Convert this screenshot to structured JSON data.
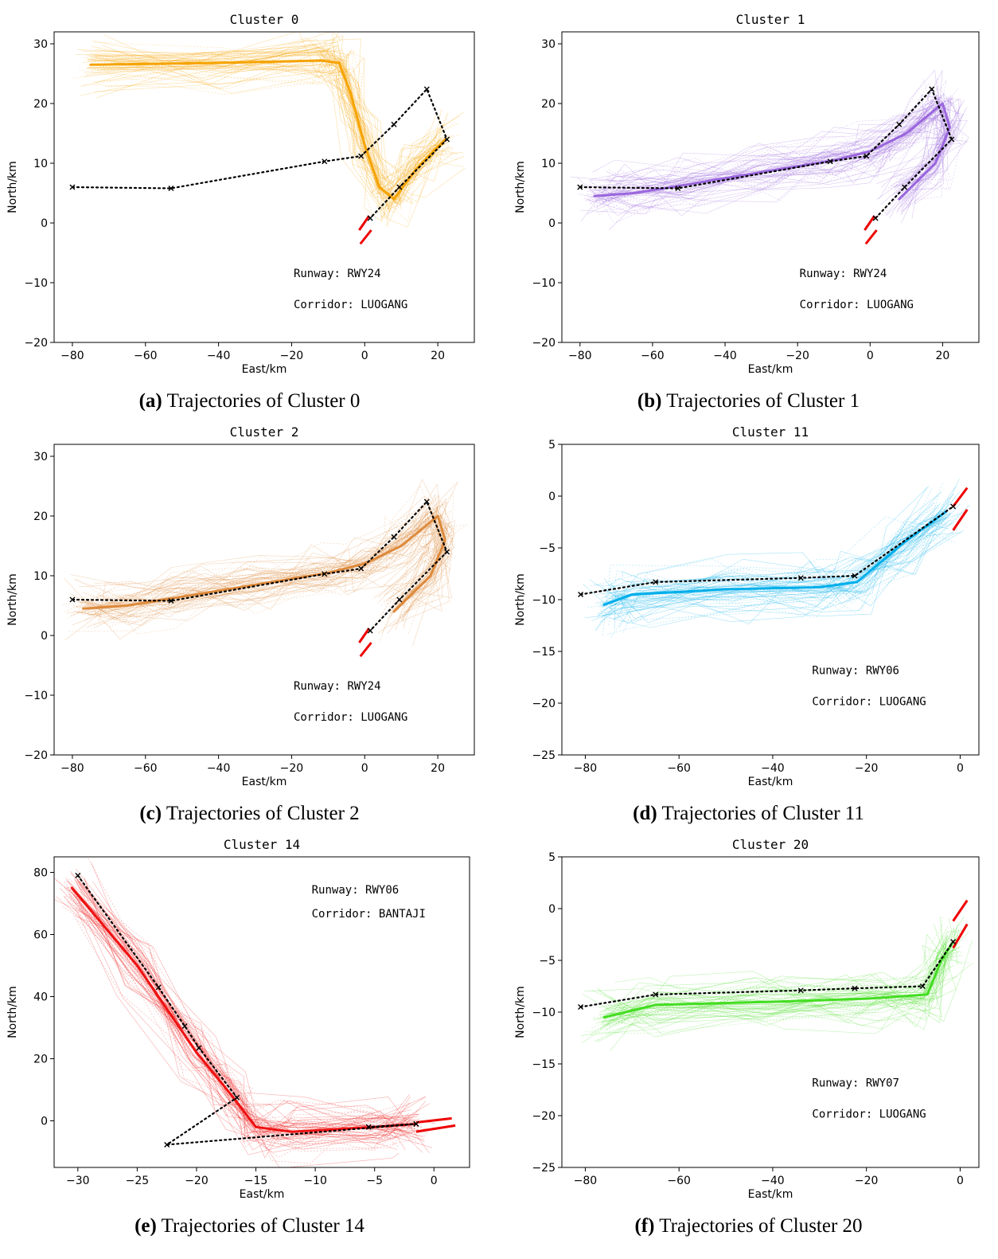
{
  "chart_data": [
    {
      "id": "a",
      "type": "line",
      "title": "Cluster 0",
      "xlabel": "East/km",
      "ylabel": "North/km",
      "xlim": [
        -85,
        30
      ],
      "ylim": [
        -20,
        32
      ],
      "xticks": [
        -80,
        -60,
        -40,
        -20,
        0,
        20
      ],
      "yticks": [
        -20,
        -10,
        0,
        10,
        20,
        30
      ],
      "xtick_labels": [
        "−80",
        "−60",
        "−40",
        "−20",
        "0",
        "20"
      ],
      "ytick_labels": [
        "−20",
        "−10",
        "0",
        "10",
        "20",
        "30"
      ],
      "color": "#f5a300",
      "annotation_runway": "Runway: RWY24",
      "annotation_corridor": "Corridor: LUOGANG",
      "route": [
        [
          -80,
          6
        ],
        [
          -53,
          5.8
        ],
        [
          -11,
          10.3
        ],
        [
          -1,
          11.2
        ],
        [
          8,
          16.5
        ],
        [
          17,
          22.4
        ],
        [
          22.5,
          14
        ],
        [
          9.5,
          6
        ],
        [
          1.5,
          0.8
        ]
      ],
      "runway_lines": [
        [
          [
            -1.5,
            -1.2
          ],
          [
            1.2,
            1.2
          ]
        ],
        [
          [
            -1.2,
            -3.5
          ],
          [
            1.8,
            -1.2
          ]
        ]
      ],
      "main_path": [
        [
          -75,
          26.5
        ],
        [
          -40,
          26.8
        ],
        [
          -12,
          27.2
        ],
        [
          -7,
          26.8
        ],
        [
          -4,
          22
        ],
        [
          0,
          13
        ],
        [
          4,
          6
        ],
        [
          8,
          4
        ],
        [
          14,
          9
        ],
        [
          22,
          14
        ]
      ],
      "annotation_position": "bottom-right",
      "caption_label": "(a)",
      "caption_text": "Trajectories of Cluster 0"
    },
    {
      "id": "b",
      "type": "line",
      "title": "Cluster 1",
      "xlabel": "East/km",
      "ylabel": "North/km",
      "xlim": [
        -85,
        30
      ],
      "ylim": [
        -20,
        32
      ],
      "xticks": [
        -80,
        -60,
        -40,
        -20,
        0,
        20
      ],
      "yticks": [
        -20,
        -10,
        0,
        10,
        20,
        30
      ],
      "xtick_labels": [
        "−80",
        "−60",
        "−40",
        "−20",
        "0",
        "20"
      ],
      "ytick_labels": [
        "−20",
        "−10",
        "0",
        "10",
        "20",
        "30"
      ],
      "color": "#9a66dc",
      "annotation_runway": "Runway: RWY24",
      "annotation_corridor": "Corridor: LUOGANG",
      "route": [
        [
          -80,
          6
        ],
        [
          -53,
          5.8
        ],
        [
          -11,
          10.3
        ],
        [
          -1,
          11.2
        ],
        [
          8,
          16.5
        ],
        [
          17,
          22.4
        ],
        [
          22.5,
          14
        ],
        [
          9.5,
          6
        ],
        [
          1.5,
          0.8
        ]
      ],
      "runway_lines": [
        [
          [
            -1.5,
            -1.2
          ],
          [
            1.2,
            1.2
          ]
        ],
        [
          [
            -1.2,
            -3.5
          ],
          [
            1.8,
            -1.2
          ]
        ]
      ],
      "main_path": [
        [
          -76,
          4.5
        ],
        [
          -65,
          5
        ],
        [
          -50,
          6.5
        ],
        [
          -30,
          8.5
        ],
        [
          -10,
          10.5
        ],
        [
          0,
          12
        ],
        [
          10,
          15
        ],
        [
          20,
          20
        ],
        [
          22,
          16
        ],
        [
          18,
          10
        ],
        [
          8,
          4
        ]
      ],
      "annotation_position": "bottom-right",
      "caption_label": "(b)",
      "caption_text": "Trajectories of Cluster 1"
    },
    {
      "id": "c",
      "type": "line",
      "title": "Cluster 2",
      "xlabel": "East/km",
      "ylabel": "North/km",
      "xlim": [
        -85,
        30
      ],
      "ylim": [
        -20,
        32
      ],
      "xticks": [
        -80,
        -60,
        -40,
        -20,
        0,
        20
      ],
      "yticks": [
        -20,
        -10,
        0,
        10,
        20,
        30
      ],
      "xtick_labels": [
        "−80",
        "−60",
        "−40",
        "−20",
        "0",
        "20"
      ],
      "ytick_labels": [
        "−20",
        "−10",
        "0",
        "10",
        "20",
        "30"
      ],
      "color": "#dd8a3c",
      "annotation_runway": "Runway: RWY24",
      "annotation_corridor": "Corridor: LUOGANG",
      "route": [
        [
          -80,
          6
        ],
        [
          -53,
          5.8
        ],
        [
          -11,
          10.3
        ],
        [
          -1,
          11.2
        ],
        [
          8,
          16.5
        ],
        [
          17,
          22.4
        ],
        [
          22.5,
          14
        ],
        [
          9.5,
          6
        ],
        [
          1.5,
          0.8
        ]
      ],
      "runway_lines": [
        [
          [
            -1.5,
            -1.2
          ],
          [
            1.2,
            1.2
          ]
        ],
        [
          [
            -1.2,
            -3.5
          ],
          [
            1.8,
            -1.2
          ]
        ]
      ],
      "main_path": [
        [
          -77,
          4.5
        ],
        [
          -65,
          5
        ],
        [
          -50,
          6.5
        ],
        [
          -30,
          8.5
        ],
        [
          -10,
          10.5
        ],
        [
          0,
          12
        ],
        [
          10,
          15
        ],
        [
          20,
          20
        ],
        [
          22,
          16
        ],
        [
          18,
          10
        ],
        [
          8,
          4
        ]
      ],
      "annotation_position": "bottom-right",
      "caption_label": "(c)",
      "caption_text": "Trajectories of Cluster 2"
    },
    {
      "id": "d",
      "type": "line",
      "title": "Cluster 11",
      "xlabel": "East/km",
      "ylabel": "North/km",
      "xlim": [
        -85,
        4
      ],
      "ylim": [
        -25,
        5
      ],
      "xticks": [
        -80,
        -60,
        -40,
        -20,
        0
      ],
      "yticks": [
        -25,
        -20,
        -15,
        -10,
        -5,
        0,
        5
      ],
      "xtick_labels": [
        "−80",
        "−60",
        "−40",
        "−20",
        "0"
      ],
      "ytick_labels": [
        "−25",
        "−20",
        "−15",
        "−10",
        "−5",
        "0",
        "5"
      ],
      "color": "#00aeea",
      "annotation_runway": "Runway: RWY06",
      "annotation_corridor": "Corridor: LUOGANG",
      "route": [
        [
          -81,
          -9.5
        ],
        [
          -65,
          -8.3
        ],
        [
          -34,
          -7.9
        ],
        [
          -22.5,
          -7.7
        ],
        [
          -1.5,
          -1
        ]
      ],
      "runway_lines": [
        [
          [
            -1.5,
            -1
          ],
          [
            1.5,
            0.8
          ]
        ],
        [
          [
            -1.5,
            -3.3
          ],
          [
            1.5,
            -1.3
          ]
        ]
      ],
      "main_path": [
        [
          -76,
          -10.5
        ],
        [
          -70,
          -9.5
        ],
        [
          -50,
          -9
        ],
        [
          -30,
          -8.8
        ],
        [
          -22,
          -8.3
        ],
        [
          -12,
          -4.5
        ],
        [
          -3,
          -1.5
        ]
      ],
      "annotation_position": "bottom-right",
      "caption_label": "(d)",
      "caption_text": "Trajectories of Cluster 11"
    },
    {
      "id": "e",
      "type": "line",
      "title": "Cluster 14",
      "xlabel": "East/km",
      "ylabel": "North/km",
      "xlim": [
        -32,
        3
      ],
      "ylim": [
        -15,
        85
      ],
      "xticks": [
        -30,
        -25,
        -20,
        -15,
        -10,
        -5,
        0
      ],
      "yticks": [
        0,
        20,
        40,
        60,
        80
      ],
      "xtick_labels": [
        "−30",
        "−25",
        "−20",
        "−15",
        "−10",
        "−5",
        "0"
      ],
      "ytick_labels": [
        "0",
        "20",
        "40",
        "60",
        "80"
      ],
      "color": "#ee1111",
      "annotation_runway": "Runway: RWY06",
      "annotation_corridor": "Corridor: BANTAJI",
      "route": [
        [
          -30,
          79
        ],
        [
          -23.2,
          43
        ],
        [
          -21,
          30.5
        ],
        [
          -19.8,
          23.5
        ],
        [
          -16.6,
          7.5
        ],
        [
          -22.5,
          -7.7
        ],
        [
          -1.5,
          -1
        ],
        [
          -5.5,
          -2
        ],
        [
          -1.5,
          -1
        ]
      ],
      "runway_lines": [
        [
          [
            -1.5,
            -0.5
          ],
          [
            1.5,
            0.8
          ]
        ],
        [
          [
            -1.5,
            -3.5
          ],
          [
            1.8,
            -1.5
          ]
        ]
      ],
      "main_path": [
        [
          -30.5,
          75
        ],
        [
          -25,
          50
        ],
        [
          -20,
          22
        ],
        [
          -17,
          8
        ],
        [
          -15,
          -2
        ],
        [
          -12,
          -3.5
        ],
        [
          -5,
          -2
        ],
        [
          -1.5,
          -1
        ]
      ],
      "annotation_position": "top-right",
      "caption_label": "(e)",
      "caption_text": "Trajectories of Cluster 14"
    },
    {
      "id": "f",
      "type": "line",
      "title": "Cluster 20",
      "xlabel": "East/km",
      "ylabel": "North/km",
      "xlim": [
        -85,
        4
      ],
      "ylim": [
        -25,
        5
      ],
      "xticks": [
        -80,
        -60,
        -40,
        -20,
        0
      ],
      "yticks": [
        -25,
        -20,
        -15,
        -10,
        -5,
        0,
        5
      ],
      "xtick_labels": [
        "−80",
        "−60",
        "−40",
        "−20",
        "0"
      ],
      "ytick_labels": [
        "−25",
        "−20",
        "−15",
        "−10",
        "−5",
        "0",
        "5"
      ],
      "color": "#44dd22",
      "annotation_runway": "Runway: RWY07",
      "annotation_corridor": "Corridor: LUOGANG",
      "route": [
        [
          -81,
          -9.5
        ],
        [
          -65,
          -8.3
        ],
        [
          -34,
          -7.9
        ],
        [
          -22.5,
          -7.7
        ],
        [
          -8,
          -7.5
        ],
        [
          -1.5,
          -3.2
        ]
      ],
      "runway_lines": [
        [
          [
            -1.5,
            -1.2
          ],
          [
            1.5,
            0.8
          ]
        ],
        [
          [
            -1.5,
            -3.8
          ],
          [
            1.5,
            -1.5
          ]
        ]
      ],
      "main_path": [
        [
          -76,
          -10.5
        ],
        [
          -65,
          -9.3
        ],
        [
          -40,
          -9
        ],
        [
          -20,
          -8.7
        ],
        [
          -7,
          -8.3
        ],
        [
          -4,
          -5
        ],
        [
          -1.5,
          -3.2
        ]
      ],
      "annotation_position": "bottom-right",
      "caption_label": "(f)",
      "caption_text": "Trajectories of Cluster 20"
    }
  ]
}
